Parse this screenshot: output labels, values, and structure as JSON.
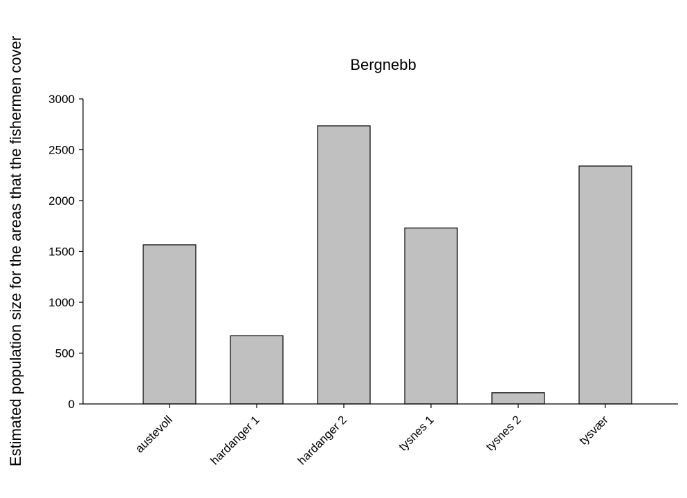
{
  "chart_data": {
    "type": "bar",
    "title": "Bergnebb",
    "xlabel": "",
    "ylabel": "Estimated population size for the areas that the fishermen cover",
    "categories": [
      "austevoll",
      "hardanger 1",
      "hardanger 2",
      "tysnes 1",
      "tysnes 2",
      "tysvær"
    ],
    "values": [
      1565,
      670,
      2735,
      1730,
      110,
      2340
    ],
    "ylim": [
      0,
      3000
    ],
    "yticks": [
      "0",
      "500",
      "1000",
      "1500",
      "2000",
      "2500",
      "3000"
    ],
    "grid": false,
    "legend": "none",
    "colors": {
      "bar_fill": "#c0c0c0",
      "bar_stroke": "#000000",
      "axis": "#000000"
    }
  }
}
